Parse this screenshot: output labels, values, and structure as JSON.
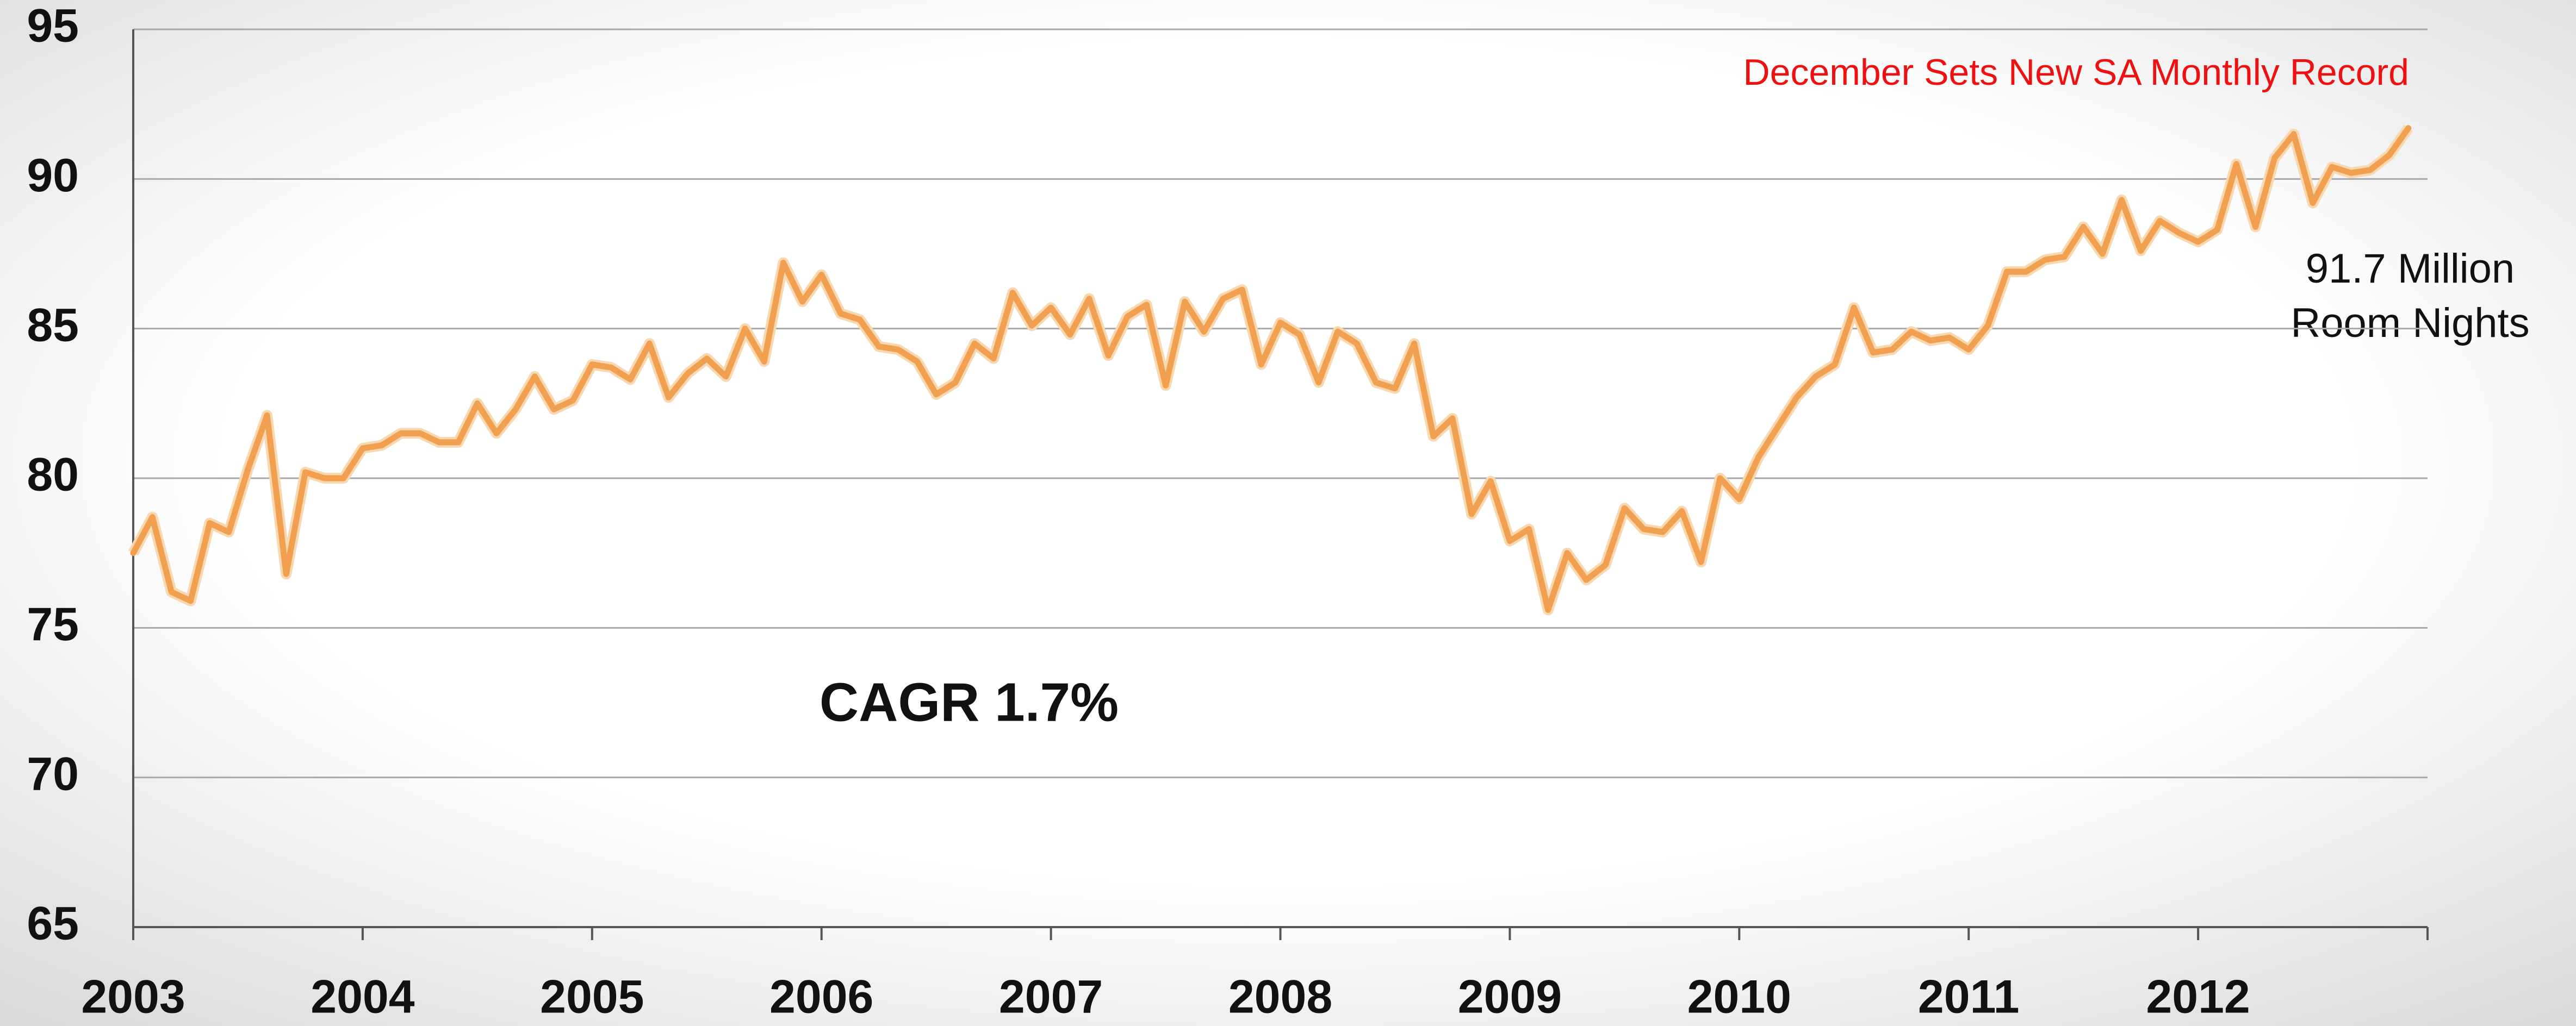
{
  "chart_data": {
    "type": "line",
    "categories": [
      "2003",
      null,
      null,
      null,
      null,
      null,
      null,
      null,
      null,
      null,
      null,
      null,
      "2004",
      null,
      null,
      null,
      null,
      null,
      null,
      null,
      null,
      null,
      null,
      null,
      "2005",
      null,
      null,
      null,
      null,
      null,
      null,
      null,
      null,
      null,
      null,
      null,
      "2006",
      null,
      null,
      null,
      null,
      null,
      null,
      null,
      null,
      null,
      null,
      null,
      "2007",
      null,
      null,
      null,
      null,
      null,
      null,
      null,
      null,
      null,
      null,
      null,
      "2008",
      null,
      null,
      null,
      null,
      null,
      null,
      null,
      null,
      null,
      null,
      null,
      "2009",
      null,
      null,
      null,
      null,
      null,
      null,
      null,
      null,
      null,
      null,
      null,
      "2010",
      null,
      null,
      null,
      null,
      null,
      null,
      null,
      null,
      null,
      null,
      null,
      "2011",
      null,
      null,
      null,
      null,
      null,
      null,
      null,
      null,
      null,
      null,
      null,
      "2012",
      null,
      null,
      null,
      null,
      null,
      null,
      null,
      null,
      null,
      null,
      null
    ],
    "values": [
      77.5,
      78.7,
      76.2,
      75.9,
      78.5,
      78.2,
      80.3,
      82.1,
      76.8,
      80.2,
      80.0,
      80.0,
      81.0,
      81.1,
      81.5,
      81.5,
      81.2,
      81.2,
      82.5,
      81.5,
      82.3,
      83.4,
      82.3,
      82.6,
      83.8,
      83.7,
      83.3,
      84.5,
      82.7,
      83.5,
      84.0,
      83.4,
      85.0,
      83.9,
      87.2,
      85.9,
      86.8,
      85.5,
      85.3,
      84.4,
      84.3,
      83.9,
      82.8,
      83.2,
      84.5,
      84.0,
      86.2,
      85.1,
      85.7,
      84.8,
      86.0,
      84.1,
      85.4,
      85.8,
      83.1,
      85.9,
      84.9,
      86.0,
      86.3,
      83.8,
      85.2,
      84.8,
      83.2,
      84.9,
      84.5,
      83.2,
      83.0,
      84.5,
      81.4,
      82.0,
      78.8,
      79.9,
      77.9,
      78.3,
      75.6,
      77.5,
      76.6,
      77.1,
      79.0,
      78.3,
      78.2,
      78.9,
      77.2,
      80.0,
      79.3,
      80.7,
      81.7,
      82.7,
      83.4,
      83.8,
      85.7,
      84.2,
      84.3,
      84.9,
      84.6,
      84.7,
      84.3,
      85.1,
      86.9,
      86.9,
      87.3,
      87.4,
      88.4,
      87.5,
      89.3,
      87.6,
      88.6,
      88.2,
      87.9,
      88.3,
      90.5,
      88.4,
      90.7,
      91.5,
      89.2,
      90.4,
      90.2,
      90.3,
      90.8,
      91.7
    ],
    "color": "#f0a050",
    "ylim": [
      65,
      95
    ],
    "yticks": [
      65,
      70,
      75,
      80,
      85,
      90,
      95
    ],
    "grid": true,
    "annotations": [
      "December Sets New SA Monthly Record",
      "91.7 Million",
      "Room Nights",
      "CAGR 1.7%"
    ]
  }
}
